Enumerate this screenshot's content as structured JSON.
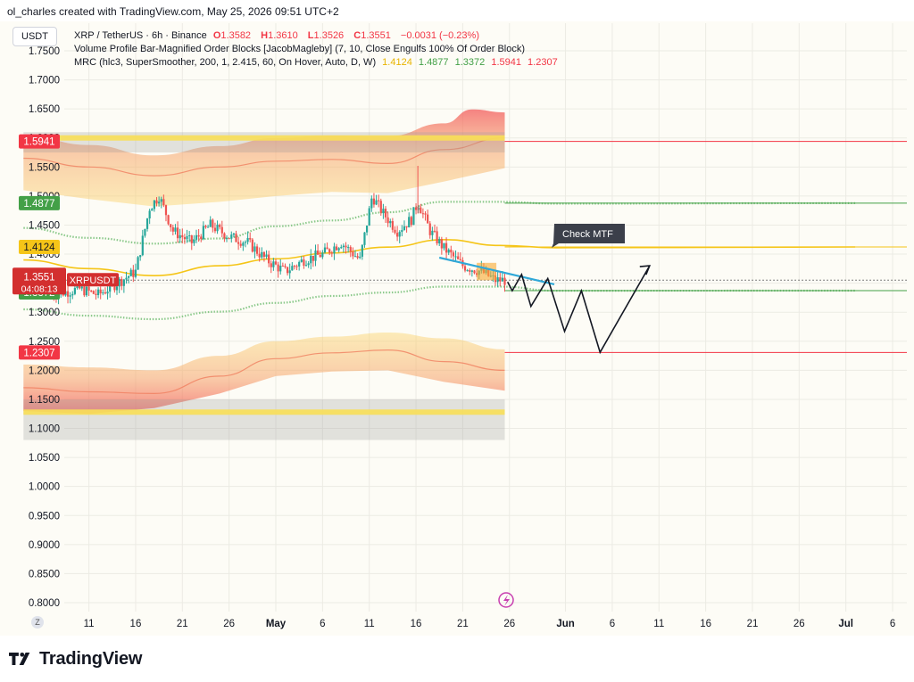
{
  "header": {
    "credit": "ol_charles created with TradingView.com, May 25, 2026 09:51 UTC+2"
  },
  "currency_badge": "USDT",
  "legend": {
    "row1": {
      "title": "XRP / TetherUS · 6h · Binance",
      "o_label": "O",
      "o_value": "1.3582",
      "h_label": "H",
      "h_value": "1.3610",
      "l_label": "L",
      "l_value": "1.3526",
      "c_label": "C",
      "c_value": "1.3551",
      "change": "−0.0031 (−0.23%)"
    },
    "row2": "Volume Profile Bar-Magnified Order Blocks [JacobMagleby] (7, 10, Close Engulfs 100% Of Order Block)",
    "row3": {
      "label": "MRC (hlc3, SuperSmoother, 200, 1, 2.415, 60, On Hover, Auto, D, W)",
      "values": [
        "1.4124",
        "1.4877",
        "1.3372",
        "1.5941",
        "1.2307"
      ]
    }
  },
  "price_labels": {
    "upper_outer": "1.5941",
    "upper_inner": "1.4877",
    "mean": "1.4124",
    "last_price": "1.3551",
    "ticker": "XRPUSDT",
    "countdown": "04:08:13",
    "lower_inner": "1.3372",
    "lower_outer": "1.2307"
  },
  "annotation": {
    "text": "Check MTF"
  },
  "footer": {
    "brand": "TradingView",
    "timezone_button": "Z"
  },
  "colors": {
    "background": "#fdfcf6",
    "up": "#26a69a",
    "down": "#ef5350",
    "mean": "#f5c518",
    "inner_band": "#8bc98b",
    "outer_red": "#f23645",
    "outer_green": "#43a047",
    "trendline": "#2fa8d8"
  },
  "chart_data": {
    "type": "candlestick",
    "title": "XRP / TetherUS · 6h · Binance",
    "x_ticks": [
      "11",
      "16",
      "21",
      "26",
      "May",
      "6",
      "11",
      "16",
      "21",
      "26",
      "Jun",
      "6",
      "11",
      "16",
      "21",
      "26",
      "Jul",
      "6"
    ],
    "y_ticks": [
      "1.7500",
      "1.7000",
      "1.6500",
      "1.6000",
      "1.5500",
      "1.5000",
      "1.4500",
      "1.4000",
      "1.3500",
      "1.3000",
      "1.2500",
      "1.2000",
      "1.1500",
      "1.1000",
      "1.0500",
      "1.0000",
      "0.9500",
      "0.9000",
      "0.8500",
      "0.8000"
    ],
    "ylim": [
      0.78,
      1.765
    ],
    "x_range_days": [
      -23.5,
      67.5
    ],
    "x_day_note": "day 0 = May 1 2026; x values in days",
    "grid": true,
    "ohlc_key_points": [
      [
        -24,
        1.33
      ],
      [
        -21,
        1.34
      ],
      [
        -19,
        1.33
      ],
      [
        -17,
        1.35
      ],
      [
        -15,
        1.37
      ],
      [
        -13.5,
        1.48
      ],
      [
        -12.5,
        1.5
      ],
      [
        -11,
        1.44
      ],
      [
        -9,
        1.42
      ],
      [
        -7,
        1.45
      ],
      [
        -5,
        1.43
      ],
      [
        -3,
        1.42
      ],
      [
        -1,
        1.39
      ],
      [
        1,
        1.37
      ],
      [
        3,
        1.39
      ],
      [
        5,
        1.4
      ],
      [
        7,
        1.42
      ],
      [
        9,
        1.39
      ],
      [
        10.3,
        1.5
      ],
      [
        11.5,
        1.47
      ],
      [
        13,
        1.44
      ],
      [
        14.5,
        1.46
      ],
      [
        15.2,
        1.49
      ],
      [
        16.5,
        1.44
      ],
      [
        18,
        1.41
      ],
      [
        20,
        1.38
      ],
      [
        22,
        1.37
      ],
      [
        23.5,
        1.355
      ],
      [
        24.5,
        1.3551
      ]
    ],
    "mrc": {
      "mean": [
        [
          -27,
          1.39
        ],
        [
          -20,
          1.375
        ],
        [
          -13,
          1.363
        ],
        [
          -6,
          1.38
        ],
        [
          0,
          1.392
        ],
        [
          6,
          1.402
        ],
        [
          12,
          1.412
        ],
        [
          18,
          1.425
        ],
        [
          24,
          1.415
        ],
        [
          30,
          1.411
        ],
        [
          62,
          1.4124
        ]
      ],
      "upper_inner": [
        [
          -27,
          1.445
        ],
        [
          -20,
          1.428
        ],
        [
          -13,
          1.418
        ],
        [
          -6,
          1.427
        ],
        [
          0,
          1.448
        ],
        [
          6,
          1.458
        ],
        [
          12,
          1.472
        ],
        [
          18,
          1.49
        ],
        [
          24,
          1.49
        ],
        [
          30,
          1.487
        ],
        [
          62,
          1.4877
        ]
      ],
      "lower_inner": [
        [
          -27,
          1.305
        ],
        [
          -20,
          1.294
        ],
        [
          -13,
          1.288
        ],
        [
          -6,
          1.301
        ],
        [
          0,
          1.316
        ],
        [
          6,
          1.328
        ],
        [
          12,
          1.334
        ],
        [
          18,
          1.344
        ],
        [
          24,
          1.344
        ],
        [
          30,
          1.337
        ],
        [
          62,
          1.3372
        ]
      ],
      "upper_outer_top": [
        [
          -27,
          1.605
        ],
        [
          -20,
          1.588
        ],
        [
          -13,
          1.57
        ],
        [
          -6,
          1.586
        ],
        [
          0,
          1.6
        ],
        [
          6,
          1.604
        ],
        [
          12,
          1.603
        ],
        [
          18,
          1.625
        ],
        [
          21,
          1.649
        ],
        [
          24.5,
          1.644
        ]
      ],
      "upper_outer_mid": [
        [
          -27,
          1.565
        ],
        [
          -20,
          1.55
        ],
        [
          -13,
          1.535
        ],
        [
          -6,
          1.55
        ],
        [
          0,
          1.56
        ],
        [
          6,
          1.563
        ],
        [
          12,
          1.556
        ],
        [
          18,
          1.58
        ],
        [
          24.5,
          1.6
        ]
      ],
      "upper_outer_bot": [
        [
          -27,
          1.51
        ],
        [
          -20,
          1.495
        ],
        [
          -13,
          1.482
        ],
        [
          -6,
          1.49
        ],
        [
          0,
          1.5
        ],
        [
          6,
          1.507
        ],
        [
          12,
          1.505
        ],
        [
          18,
          1.525
        ],
        [
          24.5,
          1.548
        ]
      ],
      "lower_outer_top": [
        [
          -27,
          1.21
        ],
        [
          -20,
          1.205
        ],
        [
          -13,
          1.2
        ],
        [
          -6,
          1.225
        ],
        [
          0,
          1.25
        ],
        [
          6,
          1.258
        ],
        [
          12,
          1.265
        ],
        [
          18,
          1.255
        ],
        [
          24.5,
          1.236
        ]
      ],
      "lower_outer_mid": [
        [
          -27,
          1.17
        ],
        [
          -20,
          1.163
        ],
        [
          -13,
          1.16
        ],
        [
          -6,
          1.19
        ],
        [
          0,
          1.22
        ],
        [
          6,
          1.23
        ],
        [
          12,
          1.235
        ],
        [
          18,
          1.215
        ],
        [
          24.5,
          1.2
        ]
      ],
      "lower_outer_bot": [
        [
          -27,
          1.13
        ],
        [
          -20,
          1.125
        ],
        [
          -13,
          1.135
        ],
        [
          -6,
          1.16
        ],
        [
          0,
          1.19
        ],
        [
          6,
          1.198
        ],
        [
          12,
          1.2
        ],
        [
          18,
          1.18
        ],
        [
          24.5,
          1.165
        ]
      ]
    },
    "order_blocks": [
      {
        "kind": "bearish",
        "x0": -27,
        "x1": 24.5,
        "y_top": 1.61,
        "y_bottom": 1.575,
        "line": 1.6
      },
      {
        "kind": "bullish",
        "x0": -27,
        "x1": 24.5,
        "y_top": 1.15,
        "y_bottom": 1.08,
        "line": 1.128
      }
    ],
    "horizontal_levels": [
      {
        "y": 1.5941,
        "color": "#f23645",
        "from": 24.5
      },
      {
        "y": 1.4877,
        "color": "#43a047",
        "from": 24.5
      },
      {
        "y": 1.4124,
        "color": "#f5c518",
        "from": 24.5
      },
      {
        "y": 1.3372,
        "color": "#43a047",
        "from": 24.5
      },
      {
        "y": 1.2307,
        "color": "#f23645",
        "from": 24.5
      },
      {
        "y": 1.3551,
        "color": "#555555",
        "from": -27,
        "dotted": true
      }
    ],
    "trendline": [
      [
        17.5,
        1.394
      ],
      [
        29.8,
        1.348
      ]
    ],
    "projection_path": [
      [
        24.8,
        1.352
      ],
      [
        25.3,
        1.337
      ],
      [
        26.3,
        1.365
      ],
      [
        27.3,
        1.31
      ],
      [
        29.1,
        1.358
      ],
      [
        30.9,
        1.267
      ],
      [
        32.7,
        1.337
      ],
      [
        34.7,
        1.231
      ],
      [
        40,
        1.38
      ]
    ]
  }
}
